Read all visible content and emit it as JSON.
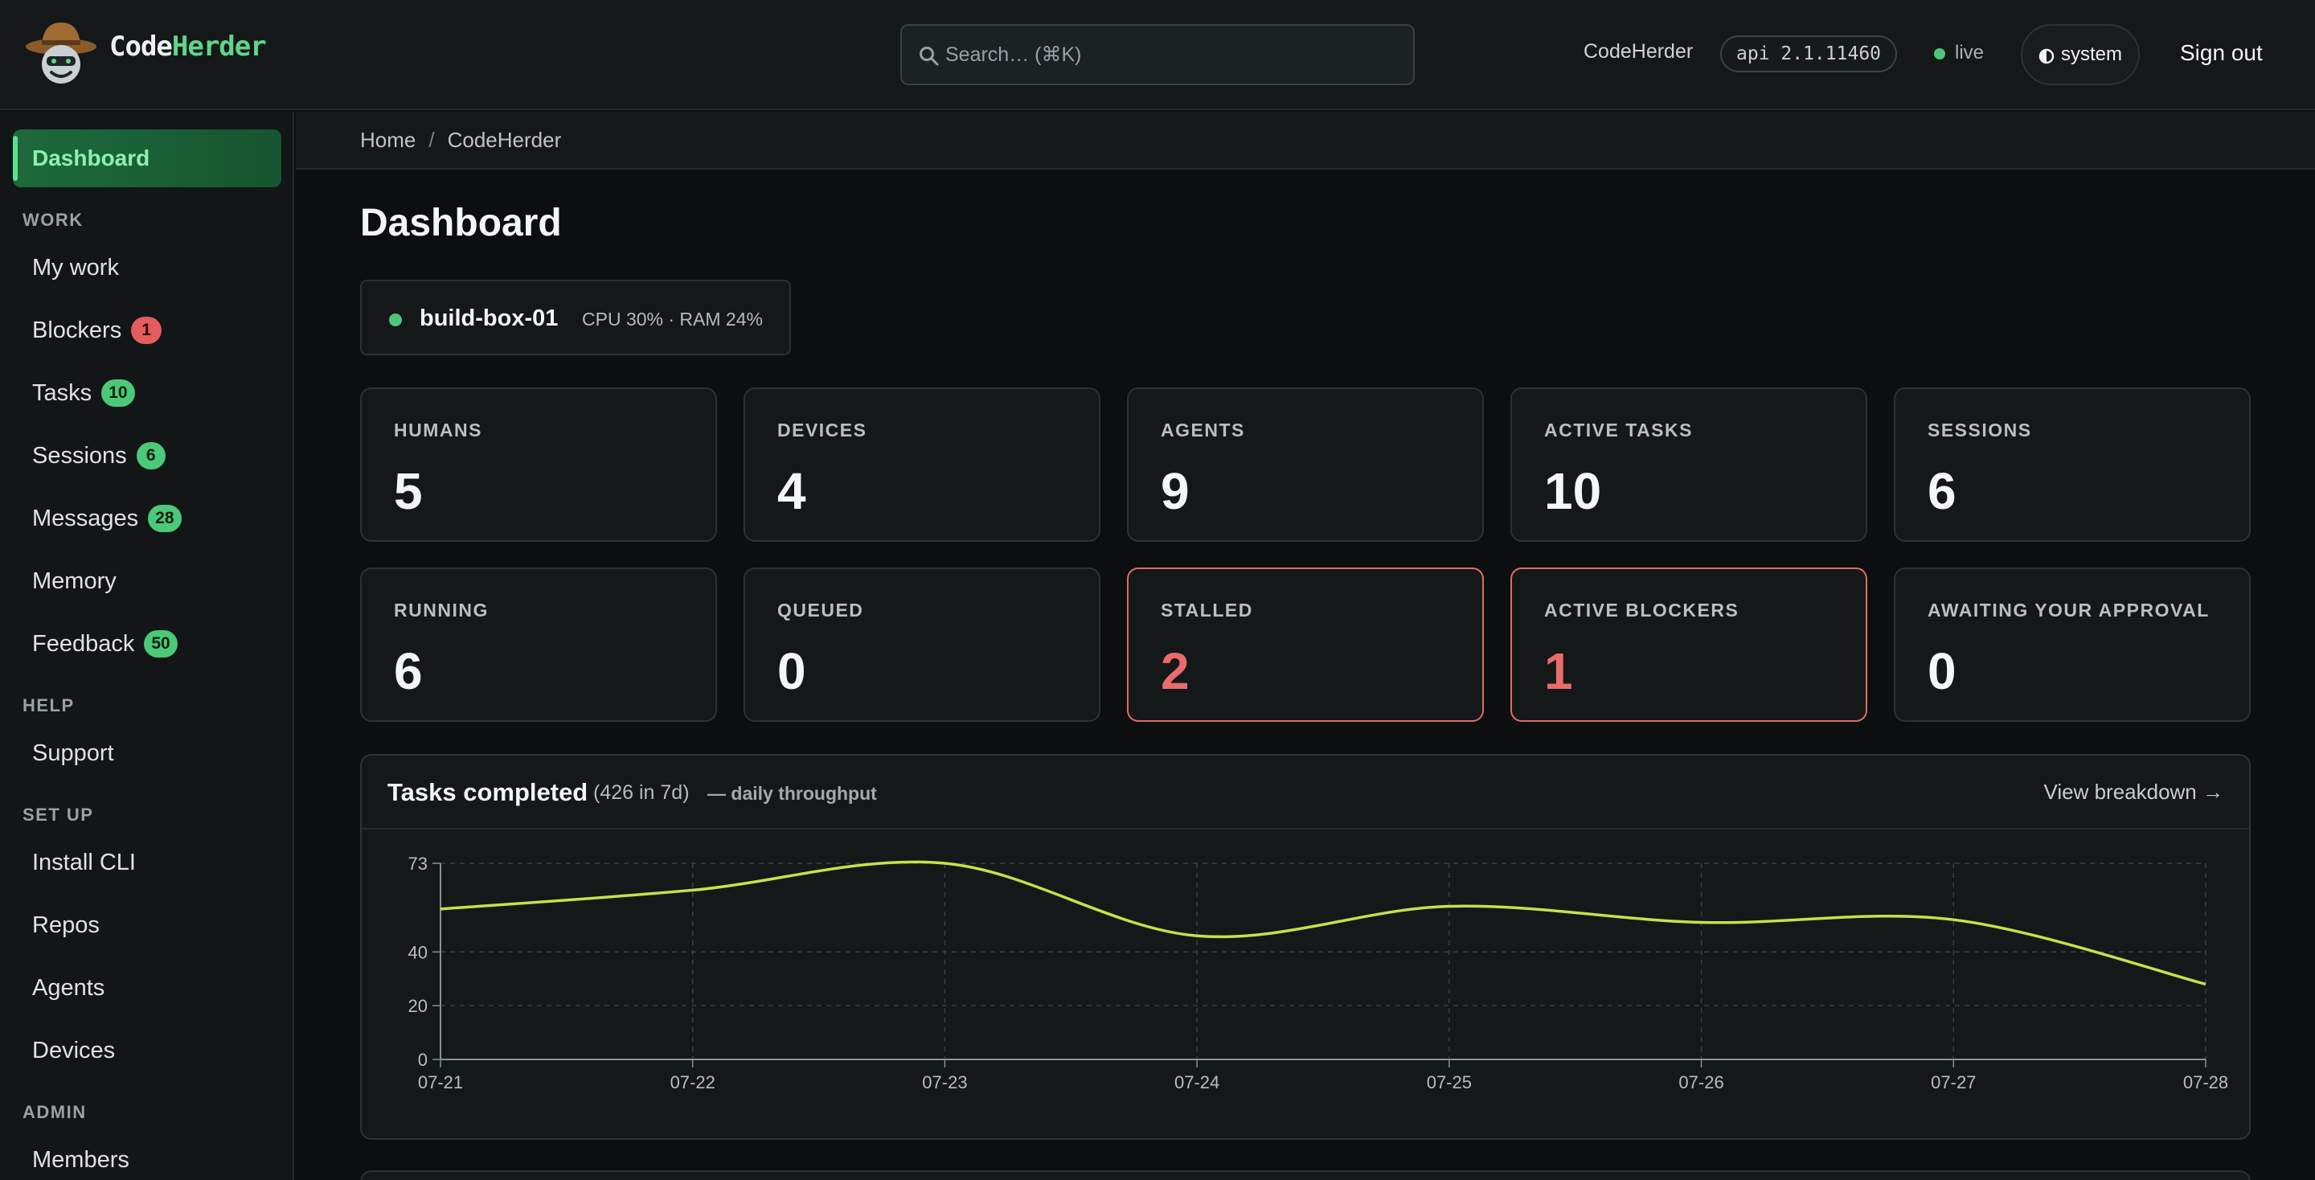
{
  "header": {
    "brand_part1": "Code",
    "brand_part2": "Herder",
    "search_placeholder": "Search… (⌘K)",
    "org_name": "CodeHerder",
    "api_version": "api 2.1.11460",
    "live_label": "live",
    "theme_label": "system",
    "signout_label": "Sign out"
  },
  "sidebar": {
    "active": "Dashboard",
    "sections": {
      "work": "WORK",
      "help": "HELP",
      "setup": "SET UP",
      "admin": "ADMIN"
    },
    "items": {
      "my_work": "My work",
      "blockers": "Blockers",
      "blockers_count": "1",
      "tasks": "Tasks",
      "tasks_count": "10",
      "sessions": "Sessions",
      "sessions_count": "6",
      "messages": "Messages",
      "messages_count": "28",
      "memory": "Memory",
      "feedback": "Feedback",
      "feedback_count": "50",
      "support": "Support",
      "install_cli": "Install CLI",
      "repos": "Repos",
      "agents": "Agents",
      "devices": "Devices",
      "members": "Members"
    }
  },
  "breadcrumb": {
    "home": "Home",
    "sep": "/",
    "current": "CodeHerder"
  },
  "page": {
    "title": "Dashboard"
  },
  "host": {
    "name": "build-box-01",
    "stats": "CPU 30% · RAM 24%"
  },
  "stats": [
    {
      "label": "HUMANS",
      "value": "5"
    },
    {
      "label": "DEVICES",
      "value": "4"
    },
    {
      "label": "AGENTS",
      "value": "9"
    },
    {
      "label": "ACTIVE TASKS",
      "value": "10"
    },
    {
      "label": "SESSIONS",
      "value": "6"
    },
    {
      "label": "RUNNING",
      "value": "6"
    },
    {
      "label": "QUEUED",
      "value": "0"
    },
    {
      "label": "STALLED",
      "value": "2"
    },
    {
      "label": "ACTIVE BLOCKERS",
      "value": "1"
    },
    {
      "label": "AWAITING YOUR APPROVAL",
      "value": "0"
    }
  ],
  "chart_card": {
    "title": "Tasks completed",
    "count": "(426 in 7d)",
    "subtitle": "— daily throughput",
    "link": "View breakdown →"
  },
  "colors": {
    "accent": "#5fd68a",
    "line": "#c8e04a",
    "alert": "#e46a6a"
  },
  "chart_data": {
    "type": "line",
    "x": [
      "07-21",
      "07-22",
      "07-23",
      "07-24",
      "07-25",
      "07-26",
      "07-27",
      "07-28"
    ],
    "series": [
      {
        "values": [
          56,
          63,
          73,
          46,
          57,
          51,
          52,
          28
        ]
      }
    ],
    "yticks": [
      0,
      20,
      40,
      73
    ],
    "ylim": [
      0,
      73
    ],
    "grid": true,
    "legend": "none"
  }
}
